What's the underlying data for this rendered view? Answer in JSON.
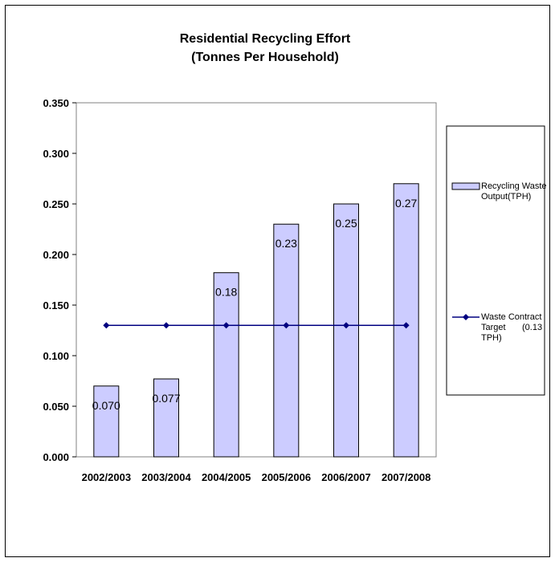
{
  "chart_data": {
    "type": "bar",
    "title": "Residential Recycling Effort",
    "subtitle": "(Tonnes Per Household)",
    "categories": [
      "2002/2003",
      "2003/2004",
      "2004/2005",
      "2005/2006",
      "2006/2007",
      "2007/2008"
    ],
    "series": [
      {
        "name": "Recycling Waste Output(TPH)",
        "type": "bar",
        "values": [
          0.07,
          0.077,
          0.182,
          0.23,
          0.25,
          0.27
        ],
        "data_labels": [
          "0.070",
          "0.077",
          "0.18",
          "0.23",
          "0.25",
          "0.27"
        ],
        "color": "#ccccff"
      },
      {
        "name": "Waste Contract Target (0.13 TPH)",
        "type": "line",
        "values": [
          0.13,
          0.13,
          0.13,
          0.13,
          0.13,
          0.13
        ],
        "color": "#000080"
      }
    ],
    "y_ticks": [
      "0.000",
      "0.050",
      "0.100",
      "0.150",
      "0.200",
      "0.250",
      "0.300",
      "0.350"
    ],
    "ylim": [
      0,
      0.35
    ],
    "xlabel": "",
    "ylabel": "",
    "grid": false,
    "legend_position": "right"
  },
  "legend": {
    "bar_line1": "Recycling Waste",
    "bar_line2": "Output(TPH)",
    "line_line1": "Waste Contract",
    "line_line2a": "Target",
    "line_line2b": "(0.13",
    "line_line3": "TPH)"
  }
}
